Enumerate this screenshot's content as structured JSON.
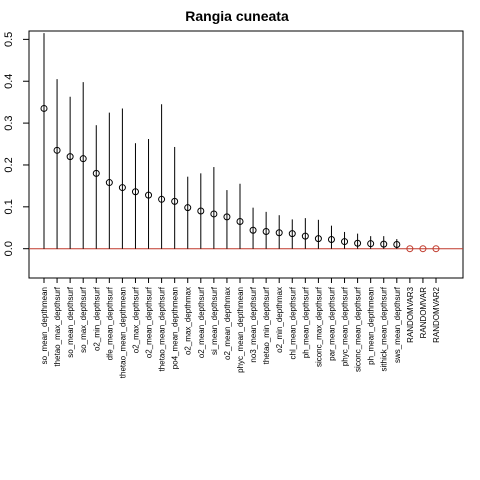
{
  "chart_data": {
    "type": "scatter",
    "title": "Rangia cuneata",
    "xlabel": "",
    "ylabel": "",
    "ylim": [
      -0.07,
      0.52
    ],
    "yticks": [
      0.0,
      0.1,
      0.2,
      0.3,
      0.4,
      0.5
    ],
    "ytick_labels": [
      "0.0",
      "0.1",
      "0.2",
      "0.3",
      "0.4",
      "0.5"
    ],
    "grid": false,
    "legend": "none",
    "point_color": "#000000",
    "random_point_color": "#c0392b",
    "baseline_color": "#c0392b",
    "categories": [
      "so_mean_depthmean",
      "thetao_max_depthsurf",
      "so_mean_depthsurf",
      "so_max_depthsurf",
      "o2_min_depthsurf",
      "dfe_mean_depthsurf",
      "thetao_mean_depthmean",
      "o2_max_depthsurf",
      "o2_mean_depthsurf",
      "thetao_mean_depthsurf",
      "po4_mean_depthmean",
      "o2_max_depthmax",
      "o2_mean_depthsurf",
      "si_mean_depthsurf",
      "o2_mean_depthmax",
      "phyc_mean_depthmean",
      "no3_mean_depthsurf",
      "thetao_min_depthsurf",
      "o2_min_depthmax",
      "chl_mean_depthsurf",
      "ph_mean_depthsurf",
      "siconc_max_depthsurf",
      "par_mean_depthsurf",
      "phyc_mean_depthsurf",
      "siconc_mean_depthsurf",
      "ph_mean_depthmean",
      "sithick_mean_depthsurf",
      "sws_mean_depthsurf",
      "RANDOMVAR3",
      "RANDOMVAR",
      "RANDOMVAR2"
    ],
    "values": [
      0.335,
      0.235,
      0.22,
      0.215,
      0.18,
      0.158,
      0.146,
      0.136,
      0.128,
      0.118,
      0.113,
      0.098,
      0.09,
      0.083,
      0.076,
      0.065,
      0.044,
      0.041,
      0.038,
      0.036,
      0.03,
      0.024,
      0.022,
      0.017,
      0.013,
      0.012,
      0.011,
      0.01,
      0.0,
      0.0,
      0.0
    ],
    "upper": [
      0.515,
      0.405,
      0.363,
      0.398,
      0.295,
      0.325,
      0.335,
      0.252,
      0.262,
      0.345,
      0.243,
      0.172,
      0.18,
      0.195,
      0.14,
      0.155,
      0.098,
      0.088,
      0.08,
      0.07,
      0.073,
      0.069,
      0.055,
      0.04,
      0.036,
      0.03,
      0.03,
      0.023,
      0.0,
      0.0,
      0.0
    ],
    "lower": [
      0.0,
      0.0,
      0.0,
      0.0,
      0.0,
      0.0,
      0.0,
      0.0,
      0.0,
      0.0,
      0.0,
      0.0,
      0.0,
      0.0,
      0.0,
      0.0,
      0.0,
      0.0,
      0.0,
      0.0,
      0.0,
      0.0,
      0.0,
      0.0,
      0.0,
      0.0,
      0.0,
      0.0,
      0.0,
      0.0,
      0.0
    ],
    "random_indices": [
      28,
      29,
      30
    ]
  }
}
